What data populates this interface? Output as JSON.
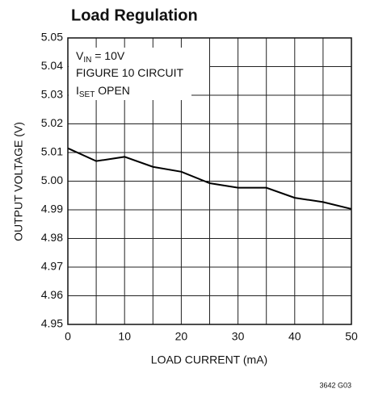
{
  "chart_data": {
    "type": "line",
    "title": "Load Regulation",
    "xlabel": "LOAD CURRENT (mA)",
    "ylabel": "OUTPUT VOLTAGE (V)",
    "annotations": [
      [
        "V",
        "IN",
        " = 10V"
      ],
      [
        "FIGURE 10 CIRCUIT"
      ],
      [
        "I",
        "SET",
        " OPEN"
      ]
    ],
    "footnote": "3642 G03",
    "x": [
      0,
      5,
      10,
      15,
      20,
      25,
      30,
      35,
      40,
      45,
      50
    ],
    "series": [
      {
        "color": "#000000",
        "values": [
          5.0115,
          5.007,
          5.0085,
          5.005,
          5.0033,
          4.9993,
          4.9977,
          4.9977,
          4.9942,
          4.9927,
          4.9903
        ]
      }
    ],
    "xlim": [
      0,
      50
    ],
    "xticks": [
      0,
      10,
      20,
      30,
      40,
      50
    ],
    "xminor": [
      5,
      15,
      25,
      35,
      45
    ],
    "ylim": [
      4.95,
      5.05
    ],
    "yticks": [
      4.95,
      4.96,
      4.97,
      4.98,
      4.99,
      {
        "value": 5,
        "label": "5.00"
      },
      5.01,
      5.02,
      5.03,
      5.04,
      5.05
    ],
    "grid": true
  }
}
